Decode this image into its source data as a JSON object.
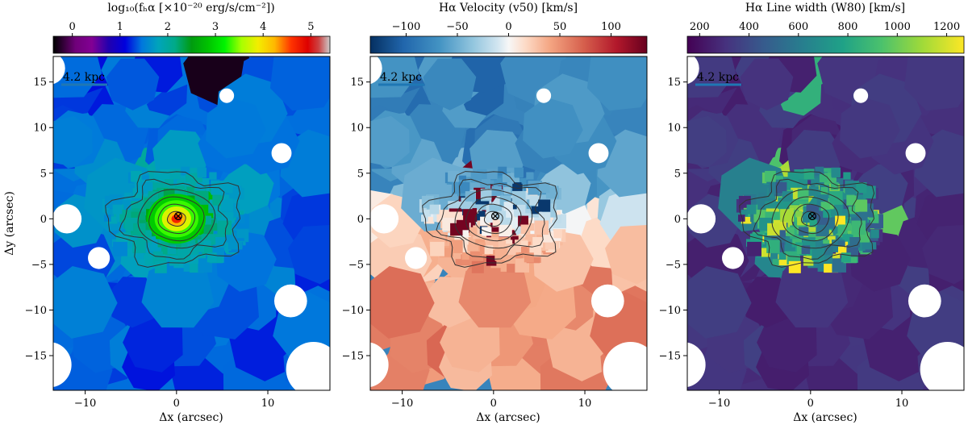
{
  "chart_data": [
    {
      "type": "heatmap",
      "panel": "flux",
      "colorbar_label": "log₁₀(fₕα [×10⁻²⁰ erg/s/cm⁻²])",
      "colorbar_ticks": [
        "0",
        "1",
        "2",
        "3",
        "4",
        "5"
      ],
      "colorbar_tick_values": [
        0,
        1,
        2,
        3,
        4,
        5
      ],
      "colorbar_range": [
        -0.4,
        5.4
      ],
      "colormap": "nipy_spectral",
      "xlabel": "Δx (arcsec)",
      "ylabel": "Δy (arcsec)",
      "xlim": [
        -13.5,
        16.8
      ],
      "ylim": [
        -18.8,
        17.8
      ],
      "xticks": [
        "−10",
        "0",
        "10"
      ],
      "xtick_values": [
        -10,
        0,
        10
      ],
      "yticks": [
        "15",
        "10",
        "5",
        "0",
        "−5",
        "−10",
        "−15"
      ],
      "ytick_values": [
        15,
        10,
        5,
        0,
        -5,
        -10,
        -15
      ],
      "scalebar_label": "4.2 kpc",
      "center_marker": "⊗",
      "background_level": 1.3,
      "center_peak": 5.0
    },
    {
      "type": "heatmap",
      "panel": "velocity",
      "colorbar_label": "Hα Velocity (v50) [km/s]",
      "colorbar_ticks": [
        "−100",
        "−50",
        "0",
        "50",
        "100"
      ],
      "colorbar_tick_values": [
        -100,
        -50,
        0,
        50,
        100
      ],
      "colorbar_range": [
        -135,
        135
      ],
      "colormap": "RdBu_r",
      "xlabel": "Δx (arcsec)",
      "xlim": [
        -13.5,
        16.8
      ],
      "ylim": [
        -18.8,
        17.8
      ],
      "xticks": [
        "−10",
        "0",
        "10"
      ],
      "xtick_values": [
        -10,
        0,
        10
      ],
      "yticks": [
        "15",
        "10",
        "5",
        "0",
        "−5",
        "−10",
        "−15"
      ],
      "ytick_values": [
        15,
        10,
        5,
        0,
        -5,
        -10,
        -15
      ],
      "scalebar_label": "4.2 kpc",
      "center_marker": "⊗",
      "north_velocity": -80,
      "south_velocity": 50
    },
    {
      "type": "heatmap",
      "panel": "linewidth",
      "colorbar_label": "Hα Line width (W80) [km/s]",
      "colorbar_ticks": [
        "200",
        "400",
        "600",
        "800",
        "1000",
        "1200"
      ],
      "colorbar_tick_values": [
        200,
        400,
        600,
        800,
        1000,
        1200
      ],
      "colorbar_range": [
        150,
        1270
      ],
      "colormap": "viridis",
      "xlabel": "Δx (arcsec)",
      "xlim": [
        -13.5,
        16.8
      ],
      "ylim": [
        -18.8,
        17.8
      ],
      "xticks": [
        "−10",
        "0",
        "10"
      ],
      "xtick_values": [
        -10,
        0,
        10
      ],
      "yticks": [
        "15",
        "10",
        "5",
        "0",
        "−5",
        "−10",
        "−15"
      ],
      "ytick_values": [
        15,
        10,
        5,
        0,
        -5,
        -10,
        -15
      ],
      "scalebar_label": "4.2 kpc",
      "center_marker": "⊗",
      "outer_width": 300,
      "inner_width": 700
    }
  ],
  "colors": {
    "scalebar": "#1f77b4",
    "contour": "#333333",
    "masked": "#ffffff"
  }
}
